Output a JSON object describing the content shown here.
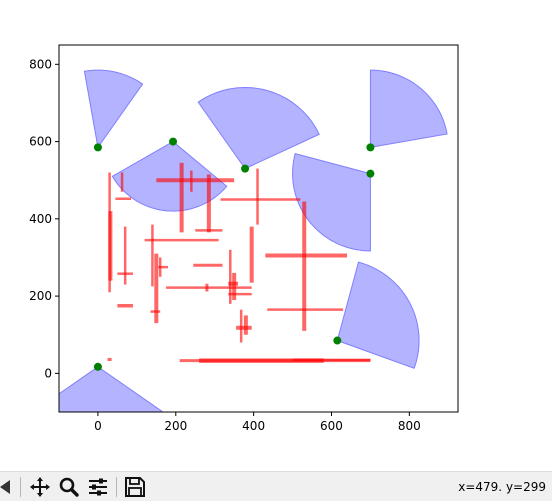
{
  "chart_data": {
    "type": "scatter",
    "title": "",
    "xlabel": "",
    "ylabel": "",
    "xlim": [
      -100,
      925
    ],
    "ylim": [
      -100,
      850
    ],
    "xticks": [
      0,
      200,
      400,
      600,
      800
    ],
    "yticks": [
      0,
      200,
      400,
      600,
      800
    ],
    "grid": false,
    "colors": {
      "sector": "#b3b3ff",
      "sector_edge": "#7f7fff",
      "point": "#008000",
      "wall": "#ff0000"
    },
    "points": [
      {
        "x": 0,
        "y": 585
      },
      {
        "x": 193,
        "y": 600
      },
      {
        "x": 378,
        "y": 530
      },
      {
        "x": 700,
        "y": 585
      },
      {
        "x": 700,
        "y": 517
      },
      {
        "x": 615,
        "y": 85
      },
      {
        "x": 0,
        "y": 17
      }
    ],
    "sectors": [
      {
        "cx": 0,
        "cy": 585,
        "r": 200,
        "a1": 100,
        "a2": 55
      },
      {
        "cx": 193,
        "cy": 600,
        "r": 180,
        "a1": 210,
        "a2": 320
      },
      {
        "cx": 378,
        "cy": 530,
        "r": 210,
        "a1": 125,
        "a2": 25
      },
      {
        "cx": 700,
        "cy": 585,
        "r": 200,
        "a1": 90,
        "a2": 10
      },
      {
        "cx": 700,
        "cy": 517,
        "r": 200,
        "a1": 165,
        "a2": 270
      },
      {
        "cx": 615,
        "cy": 85,
        "r": 210,
        "a1": 75,
        "a2": -20
      },
      {
        "cx": 0,
        "cy": 17,
        "r": 200,
        "a1": 215,
        "a2": 325
      }
    ],
    "walls": [
      {
        "x1": 30,
        "y1": 520,
        "x2": 30,
        "y2": 210,
        "w": 2.5
      },
      {
        "x1": 32,
        "y1": 420,
        "x2": 32,
        "y2": 240,
        "w": 4
      },
      {
        "x1": 62,
        "y1": 520,
        "x2": 62,
        "y2": 470,
        "w": 2.5
      },
      {
        "x1": 45,
        "y1": 452,
        "x2": 85,
        "y2": 452,
        "w": 2.5
      },
      {
        "x1": 70,
        "y1": 380,
        "x2": 70,
        "y2": 230,
        "w": 2.5
      },
      {
        "x1": 50,
        "y1": 258,
        "x2": 90,
        "y2": 258,
        "w": 2.5
      },
      {
        "x1": 50,
        "y1": 175,
        "x2": 90,
        "y2": 175,
        "w": 3.5
      },
      {
        "x1": 30,
        "y1": 40,
        "x2": 30,
        "y2": 32,
        "w": 4
      },
      {
        "x1": 120,
        "y1": 345,
        "x2": 310,
        "y2": 345,
        "w": 2.5
      },
      {
        "x1": 140,
        "y1": 385,
        "x2": 140,
        "y2": 225,
        "w": 2.5
      },
      {
        "x1": 150,
        "y1": 310,
        "x2": 150,
        "y2": 130,
        "w": 4
      },
      {
        "x1": 155,
        "y1": 275,
        "x2": 180,
        "y2": 275,
        "w": 2.5
      },
      {
        "x1": 160,
        "y1": 300,
        "x2": 160,
        "y2": 250,
        "w": 2.5
      },
      {
        "x1": 135,
        "y1": 160,
        "x2": 160,
        "y2": 160,
        "w": 2.5
      },
      {
        "x1": 150,
        "y1": 500,
        "x2": 350,
        "y2": 500,
        "w": 4
      },
      {
        "x1": 215,
        "y1": 545,
        "x2": 215,
        "y2": 365,
        "w": 4
      },
      {
        "x1": 240,
        "y1": 525,
        "x2": 240,
        "y2": 470,
        "w": 2.5
      },
      {
        "x1": 285,
        "y1": 515,
        "x2": 285,
        "y2": 365,
        "w": 4
      },
      {
        "x1": 250,
        "y1": 370,
        "x2": 320,
        "y2": 370,
        "w": 2.5
      },
      {
        "x1": 245,
        "y1": 280,
        "x2": 320,
        "y2": 280,
        "w": 3
      },
      {
        "x1": 175,
        "y1": 222,
        "x2": 395,
        "y2": 222,
        "w": 2.5
      },
      {
        "x1": 280,
        "y1": 232,
        "x2": 280,
        "y2": 212,
        "w": 3
      },
      {
        "x1": 315,
        "y1": 450,
        "x2": 520,
        "y2": 450,
        "w": 2.5
      },
      {
        "x1": 410,
        "y1": 530,
        "x2": 410,
        "y2": 385,
        "w": 2.5
      },
      {
        "x1": 395,
        "y1": 380,
        "x2": 395,
        "y2": 235,
        "w": 4
      },
      {
        "x1": 340,
        "y1": 320,
        "x2": 340,
        "y2": 180,
        "w": 2.5
      },
      {
        "x1": 335,
        "y1": 232,
        "x2": 360,
        "y2": 232,
        "w": 4
      },
      {
        "x1": 350,
        "y1": 260,
        "x2": 350,
        "y2": 190,
        "w": 4
      },
      {
        "x1": 335,
        "y1": 205,
        "x2": 395,
        "y2": 205,
        "w": 2.5
      },
      {
        "x1": 368,
        "y1": 165,
        "x2": 368,
        "y2": 80,
        "w": 2.5
      },
      {
        "x1": 380,
        "y1": 150,
        "x2": 380,
        "y2": 100,
        "w": 4
      },
      {
        "x1": 355,
        "y1": 118,
        "x2": 395,
        "y2": 118,
        "w": 4
      },
      {
        "x1": 430,
        "y1": 305,
        "x2": 640,
        "y2": 305,
        "w": 4
      },
      {
        "x1": 530,
        "y1": 445,
        "x2": 530,
        "y2": 110,
        "w": 4
      },
      {
        "x1": 435,
        "y1": 165,
        "x2": 630,
        "y2": 165,
        "w": 2.5
      },
      {
        "x1": 210,
        "y1": 33,
        "x2": 700,
        "y2": 33,
        "w": 3
      },
      {
        "x1": 260,
        "y1": 33,
        "x2": 580,
        "y2": 33,
        "w": 4.5
      },
      {
        "x1": 500,
        "y1": 35,
        "x2": 700,
        "y2": 35,
        "w": 2.5
      }
    ]
  },
  "toolbar": {
    "buttons": [
      {
        "name": "back-icon"
      },
      {
        "name": "pan-icon"
      },
      {
        "name": "zoom-icon"
      },
      {
        "name": "configure-subplots-icon"
      },
      {
        "name": "save-icon"
      }
    ],
    "coords": "x=479. y=299"
  }
}
